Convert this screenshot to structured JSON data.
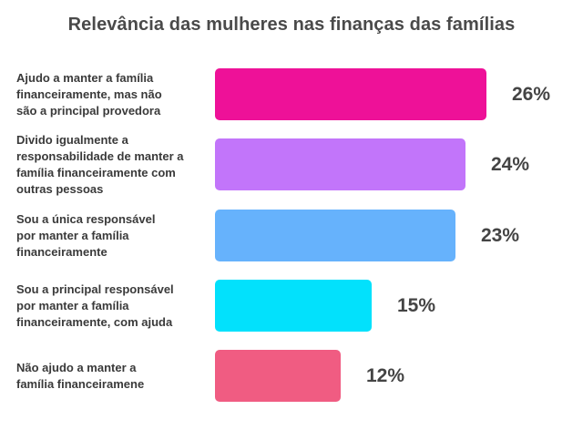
{
  "chart_data": {
    "type": "bar",
    "orientation": "horizontal",
    "title": "Relevância das mulheres nas finanças das famílias",
    "categories": [
      "Ajudo a manter a família financeiramente, mas não são a principal provedora",
      "Divido igualmente a responsabilidade de manter a família financeiramente com outras pessoas",
      "Sou a única responsável por manter a família financeiramente",
      "Sou a principal responsável por manter a família financeiramente, com ajuda",
      "Não ajudo a manter a família financeiramene"
    ],
    "values": [
      26,
      24,
      23,
      15,
      12
    ],
    "value_labels": [
      "26%",
      "24%",
      "23%",
      "15%",
      "12%"
    ],
    "colors": [
      "#EE1198",
      "#C275FA",
      "#66B2FC",
      "#02E1FC",
      "#F05C82"
    ],
    "xlabel": "",
    "ylabel": "",
    "xlim": [
      0,
      26
    ],
    "grid": false,
    "legend": "none"
  },
  "rows": [
    {
      "lines": [
        "Ajudo a manter a família",
        "financeiramente, mas não",
        "são a principal provedora"
      ]
    },
    {
      "lines": [
        "Divido igualmente a",
        "responsabilidade de manter a",
        "família financeiramente com",
        "outras pessoas"
      ]
    },
    {
      "lines": [
        "Sou a única responsável",
        "por manter a família",
        "financeiramente"
      ]
    },
    {
      "lines": [
        "Sou a principal responsável",
        "por manter a família",
        "financeiramente, com ajuda"
      ]
    },
    {
      "lines": [
        "Não ajudo a manter a",
        "família financeiramene"
      ]
    }
  ]
}
